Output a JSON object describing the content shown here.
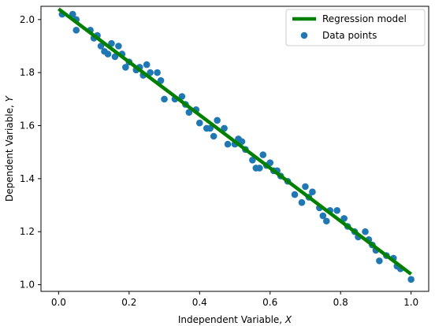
{
  "chart_data": {
    "type": "scatter",
    "xlabel": "Independent Variable, X",
    "ylabel": "Dependent Variable, Y",
    "xlim": [
      -0.05,
      1.05
    ],
    "ylim": [
      0.975,
      2.05
    ],
    "xticks": [
      0.0,
      0.2,
      0.4,
      0.6,
      0.8,
      1.0
    ],
    "xtick_labels": [
      "0.0",
      "0.2",
      "0.4",
      "0.6",
      "0.8",
      "1.0"
    ],
    "yticks": [
      1.0,
      1.2,
      1.4,
      1.6,
      1.8,
      2.0
    ],
    "ytick_labels": [
      "1.0",
      "1.2",
      "1.4",
      "1.6",
      "1.8",
      "2.0"
    ],
    "grid": false,
    "legend_position": "top-right",
    "series": [
      {
        "name": "Regression model",
        "kind": "line",
        "color": "#008000",
        "x": [
          0.0,
          1.0
        ],
        "y": [
          2.04,
          1.04
        ]
      },
      {
        "name": "Data points",
        "kind": "scatter",
        "color": "#1f77b4",
        "x": [
          0.01,
          0.04,
          0.05,
          0.05,
          0.09,
          0.1,
          0.11,
          0.12,
          0.13,
          0.14,
          0.15,
          0.16,
          0.17,
          0.18,
          0.19,
          0.2,
          0.22,
          0.23,
          0.24,
          0.25,
          0.26,
          0.28,
          0.29,
          0.3,
          0.33,
          0.35,
          0.36,
          0.37,
          0.39,
          0.4,
          0.42,
          0.43,
          0.44,
          0.45,
          0.47,
          0.48,
          0.5,
          0.51,
          0.52,
          0.53,
          0.55,
          0.56,
          0.57,
          0.58,
          0.59,
          0.6,
          0.61,
          0.62,
          0.63,
          0.65,
          0.67,
          0.69,
          0.7,
          0.71,
          0.72,
          0.74,
          0.75,
          0.76,
          0.77,
          0.79,
          0.81,
          0.82,
          0.84,
          0.85,
          0.87,
          0.88,
          0.89,
          0.9,
          0.91,
          0.93,
          0.95,
          0.96,
          0.97,
          1.0
        ],
        "y": [
          2.02,
          2.02,
          2.0,
          1.96,
          1.96,
          1.93,
          1.94,
          1.9,
          1.88,
          1.87,
          1.91,
          1.86,
          1.9,
          1.87,
          1.82,
          1.84,
          1.81,
          1.82,
          1.79,
          1.83,
          1.8,
          1.8,
          1.77,
          1.7,
          1.7,
          1.71,
          1.68,
          1.65,
          1.66,
          1.61,
          1.59,
          1.59,
          1.56,
          1.62,
          1.59,
          1.53,
          1.53,
          1.55,
          1.54,
          1.51,
          1.47,
          1.44,
          1.44,
          1.49,
          1.45,
          1.46,
          1.43,
          1.43,
          1.41,
          1.39,
          1.34,
          1.31,
          1.37,
          1.33,
          1.35,
          1.29,
          1.26,
          1.24,
          1.28,
          1.28,
          1.25,
          1.22,
          1.2,
          1.18,
          1.2,
          1.17,
          1.15,
          1.13,
          1.09,
          1.11,
          1.1,
          1.07,
          1.06,
          1.02
        ]
      }
    ]
  }
}
